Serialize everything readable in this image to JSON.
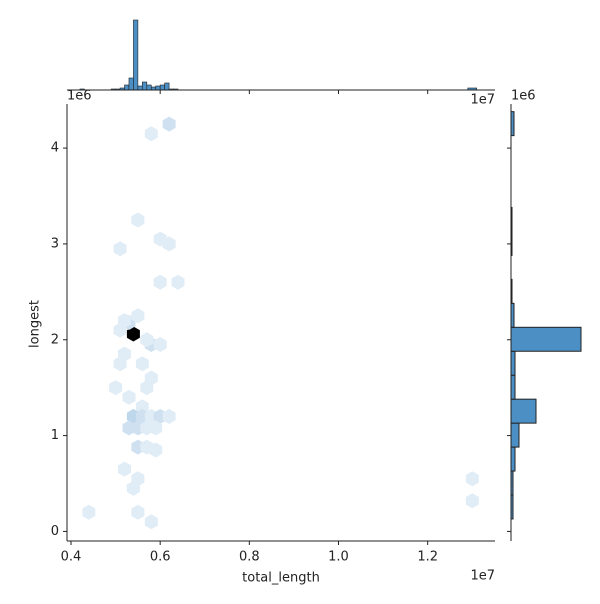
{
  "chart_data": {
    "type": "hexbin-joint",
    "x_label": "total_length",
    "y_label": "longest",
    "x_offset": "1e7",
    "y_offset": "1e6",
    "xlim": [
      0.391,
      1.351
    ],
    "xticks": [
      0.4,
      0.6,
      0.8,
      {
        "value": 1.0,
        "label": "1.0"
      },
      1.2
    ],
    "ylim": [
      -0.1,
      4.46
    ],
    "yticks": [
      0,
      1,
      2,
      3,
      4
    ],
    "color": "#4c8fc4",
    "hexbins": {
      "x": [
        0.54,
        0.53,
        0.52,
        0.51,
        0.55,
        0.58,
        0.57,
        0.6,
        0.52,
        0.56,
        0.58,
        0.57,
        0.53,
        0.56,
        0.54,
        0.56,
        0.58,
        0.6,
        0.62,
        0.53,
        0.55,
        0.57,
        0.59,
        0.55,
        0.57,
        0.59,
        0.52,
        0.55,
        0.54,
        0.55,
        0.58,
        0.44,
        0.6,
        0.64,
        0.62,
        0.6,
        0.55,
        0.51,
        0.62,
        0.58,
        1.3,
        1.3,
        0.5,
        0.51
      ],
      "y": [
        2.06,
        2.18,
        2.2,
        2.1,
        2.25,
        1.95,
        2.0,
        1.95,
        1.85,
        1.75,
        1.6,
        1.5,
        1.4,
        1.3,
        1.2,
        1.2,
        1.2,
        1.2,
        1.2,
        1.08,
        1.08,
        1.08,
        1.08,
        0.88,
        0.88,
        0.85,
        0.65,
        0.55,
        0.45,
        0.2,
        0.1,
        0.2,
        2.6,
        2.6,
        3.0,
        3.05,
        3.25,
        2.95,
        4.25,
        4.15,
        0.55,
        0.32,
        1.5,
        1.75
      ],
      "counts": [
        20,
        2,
        1,
        1,
        1,
        2,
        1,
        1,
        1,
        1,
        1,
        1,
        1,
        1,
        3,
        2,
        1,
        2,
        1,
        2,
        2,
        1,
        1,
        2,
        1,
        1,
        1,
        1,
        1,
        1,
        1,
        1,
        1,
        1,
        1,
        1,
        1,
        1,
        2,
        1,
        1,
        1,
        1,
        1
      ]
    },
    "x_hist": {
      "bins": [
        0.42,
        0.43,
        0.44,
        0.45,
        0.46,
        0.47,
        0.48,
        0.49,
        0.5,
        0.51,
        0.52,
        0.53,
        0.54,
        0.55,
        0.56,
        0.57,
        0.58,
        0.59,
        0.6,
        0.61,
        0.62,
        0.63,
        0.64,
        1.29,
        1.31
      ],
      "counts": [
        1,
        0,
        0,
        0,
        0,
        0,
        0,
        1,
        1,
        2,
        5,
        12,
        70,
        4,
        8,
        5,
        3,
        4,
        5,
        7,
        1,
        1,
        0,
        2
      ],
      "lim": [
        0,
        70
      ]
    },
    "y_hist": {
      "bins": [
        0.13,
        0.38,
        0.63,
        0.88,
        1.13,
        1.38,
        1.63,
        1.88,
        2.13,
        2.38,
        2.63,
        2.88,
        3.13,
        3.38,
        3.63,
        3.88,
        4.13,
        4.38
      ],
      "counts": [
        2,
        2,
        4,
        8,
        25,
        4,
        4,
        70,
        3,
        1,
        0,
        1,
        1,
        0,
        0,
        0,
        3
      ],
      "lim": [
        0,
        70
      ]
    }
  }
}
